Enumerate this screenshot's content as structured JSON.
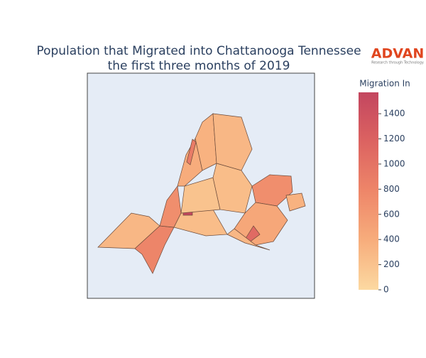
{
  "chart_data": {
    "type": "choropleth",
    "title": [
      "Population that Migrated into Chattanooga Tennessee",
      "the first three months of 2019"
    ],
    "logo": {
      "name": "ADVAN",
      "tagline": "Research through Technology"
    },
    "colorbar_title": "Migration In",
    "colorscale": [
      "#fcd9a1",
      "#f7ad7c",
      "#ee8669",
      "#dc6361",
      "#c3465f"
    ],
    "zlim": [
      0,
      1570
    ],
    "zticks": [
      0,
      200,
      400,
      600,
      800,
      1000,
      1200,
      1400
    ],
    "values": [
      300,
      800,
      700,
      250,
      1550,
      200,
      400,
      900,
      350,
      300,
      250,
      700,
      450,
      1100,
      350,
      300
    ]
  }
}
